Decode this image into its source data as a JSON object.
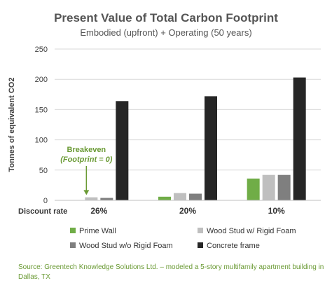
{
  "chart_data": {
    "type": "bar",
    "title": "Present Value of Total Carbon Footprint",
    "subtitle": "Embodied (upfront) + Operating (50 years)",
    "ylabel": "Tonnes of equivalent CO2",
    "xlabel": "Discount rate",
    "ylim": [
      0,
      250
    ],
    "yticks": [
      0,
      50,
      100,
      150,
      200,
      250
    ],
    "grid": true,
    "legend_position": "bottom",
    "categories": [
      "26%",
      "20%",
      "10%"
    ],
    "series": [
      {
        "name": "Prime Wall",
        "color": "#70ad47",
        "values": [
          0,
          6,
          36
        ]
      },
      {
        "name": "Wood Stud w/ Rigid Foam",
        "color": "#bfbfbf",
        "values": [
          5,
          12,
          42
        ]
      },
      {
        "name": "Wood Stud w/o Rigid Foam",
        "color": "#7f7f7f",
        "values": [
          4,
          11,
          42
        ]
      },
      {
        "name": "Concrete frame",
        "color": "#262626",
        "values": [
          164,
          172,
          203
        ]
      }
    ],
    "annotation": {
      "line1": "Breakeven",
      "line2": "(Footprint = 0)",
      "category_index": 0,
      "arrow_from": 110,
      "arrow_to": 10
    }
  },
  "source": {
    "line1": "Source: Greentech Knowledge Solutions Ltd. – modeled a 5-story multifamily apartment building in",
    "line2": "Dallas, TX"
  }
}
